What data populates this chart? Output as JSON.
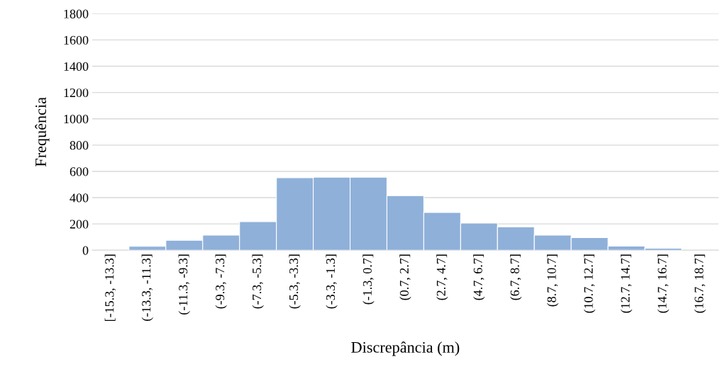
{
  "chart_data": {
    "type": "bar",
    "xlabel": "Discrepância (m)",
    "ylabel": "Frequência",
    "categories": [
      "[-15.3, -13.3]",
      "(-13.3, -11.3]",
      "(-11.3, -9.3]",
      "(-9.3, -7.3]",
      "(-7.3, -5.3]",
      "(-5.3, -3.3]",
      "(-3.3, -1.3]",
      "(-1.3, 0.7]",
      "(0.7, 2.7]",
      "(2.7, 4.7]",
      "(4.7, 6.7]",
      "(6.7, 8.7]",
      "(8.7, 10.7]",
      "(10.7, 12.7]",
      "(12.7, 14.7]",
      "(14.7, 16.7]",
      "(16.7, 18.7]"
    ],
    "values": [
      null,
      30,
      76,
      115,
      218,
      552,
      556,
      556,
      415,
      287,
      207,
      178,
      115,
      96,
      32,
      15,
      null
    ],
    "color": "#8fb0d9",
    "ylim": [
      0,
      1800
    ],
    "yticks": [
      0,
      200,
      400,
      600,
      800,
      1000,
      1200,
      1400,
      1600,
      1800
    ],
    "grid": "y"
  }
}
